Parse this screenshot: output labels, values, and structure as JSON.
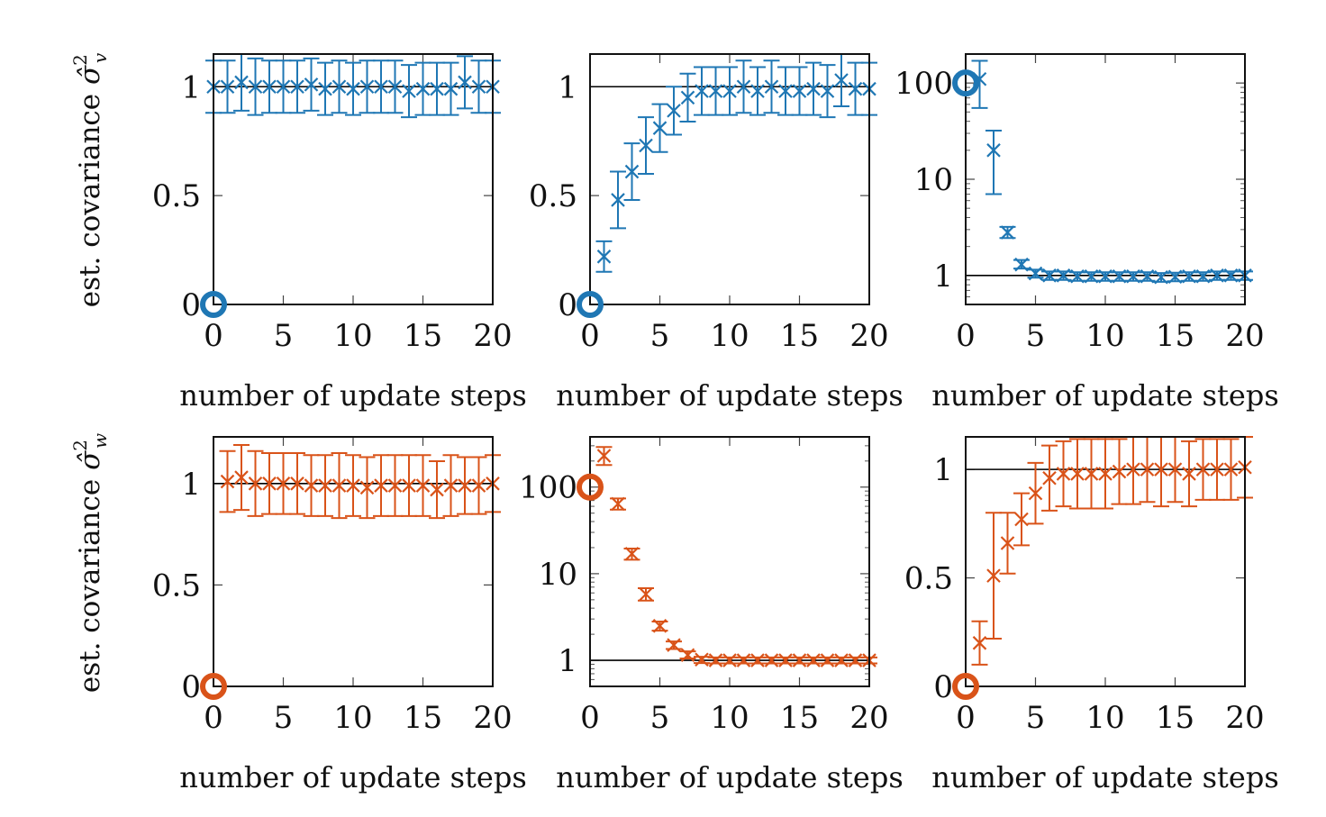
{
  "colors": {
    "blue": "#1f77b4",
    "orange": "#d95319",
    "reference_line": "#000000"
  },
  "row_labels": {
    "top": "est. covariance σ̂²_v",
    "bottom": "est. covariance σ̂²_w"
  },
  "chart_data": [
    {
      "type": "scatter",
      "row": 0,
      "col": 0,
      "color": "blue",
      "xlabel": "number of update steps",
      "ylabel": "est. covariance σ̂²_v",
      "xlim": [
        0,
        20
      ],
      "ylim": [
        0,
        1.15
      ],
      "yscale": "linear",
      "xticks": [
        0,
        5,
        10,
        15,
        20
      ],
      "xtick_labels": [
        "0",
        "5",
        "10",
        "15",
        "20"
      ],
      "yticks": [
        0,
        0.5,
        1
      ],
      "ytick_labels": [
        "0",
        "0.5",
        "1"
      ],
      "reference_line": 1,
      "initial_point": {
        "x": 0,
        "y": 0
      },
      "x": [
        0,
        1,
        2,
        3,
        4,
        5,
        6,
        7,
        8,
        9,
        10,
        11,
        12,
        13,
        14,
        15,
        16,
        17,
        18,
        19,
        20
      ],
      "y": [
        1.0,
        1.0,
        1.02,
        1.0,
        1.0,
        1.0,
        1.0,
        1.01,
        0.99,
        1.0,
        0.99,
        1.0,
        1.0,
        1.0,
        0.98,
        0.99,
        0.99,
        0.99,
        1.02,
        1.0,
        1.0
      ],
      "err": [
        0.12,
        0.12,
        0.13,
        0.13,
        0.12,
        0.12,
        0.12,
        0.12,
        0.12,
        0.12,
        0.12,
        0.12,
        0.12,
        0.12,
        0.12,
        0.12,
        0.12,
        0.12,
        0.12,
        0.12,
        0.12
      ]
    },
    {
      "type": "scatter",
      "row": 0,
      "col": 1,
      "color": "blue",
      "xlabel": "number of update steps",
      "ylabel": "",
      "xlim": [
        0,
        20
      ],
      "ylim": [
        0,
        1.15
      ],
      "yscale": "linear",
      "xticks": [
        0,
        5,
        10,
        15,
        20
      ],
      "xtick_labels": [
        "0",
        "5",
        "10",
        "15",
        "20"
      ],
      "yticks": [
        0,
        0.5,
        1
      ],
      "ytick_labels": [
        "0",
        "0.5",
        "1"
      ],
      "reference_line": 1,
      "initial_point": {
        "x": 0,
        "y": 0
      },
      "x": [
        1,
        2,
        3,
        4,
        5,
        6,
        7,
        8,
        9,
        10,
        11,
        12,
        13,
        14,
        15,
        16,
        17,
        18,
        19,
        20
      ],
      "y": [
        0.22,
        0.48,
        0.61,
        0.73,
        0.81,
        0.89,
        0.95,
        0.98,
        0.98,
        0.98,
        1.0,
        0.98,
        1.0,
        0.98,
        0.98,
        0.99,
        0.98,
        1.03,
        0.99,
        0.99
      ],
      "err": [
        0.07,
        0.13,
        0.13,
        0.13,
        0.11,
        0.11,
        0.11,
        0.11,
        0.11,
        0.11,
        0.12,
        0.11,
        0.12,
        0.11,
        0.11,
        0.12,
        0.12,
        0.12,
        0.12,
        0.12
      ]
    },
    {
      "type": "scatter",
      "row": 0,
      "col": 2,
      "color": "blue",
      "xlabel": "number of update steps",
      "ylabel": "",
      "xlim": [
        0,
        20
      ],
      "ylim": [
        0.5,
        200
      ],
      "yscale": "log",
      "xticks": [
        0,
        5,
        10,
        15,
        20
      ],
      "xtick_labels": [
        "0",
        "5",
        "10",
        "15",
        "20"
      ],
      "yticks": [
        1,
        10,
        100
      ],
      "ytick_labels": [
        "1",
        "10",
        "100"
      ],
      "reference_line": 1,
      "initial_point": {
        "x": 0,
        "y": 100
      },
      "x": [
        1,
        2,
        3,
        4,
        5,
        6,
        7,
        8,
        9,
        10,
        11,
        12,
        13,
        14,
        15,
        16,
        17,
        18,
        19,
        20
      ],
      "y": [
        110,
        20,
        2.8,
        1.3,
        1.05,
        1.0,
        1.0,
        0.98,
        0.98,
        0.98,
        0.98,
        0.98,
        0.98,
        0.96,
        0.97,
        0.98,
        0.98,
        1.0,
        1.0,
        1.0
      ],
      "err_low": [
        55,
        7,
        2.45,
        1.18,
        0.95,
        0.9,
        0.9,
        0.88,
        0.88,
        0.88,
        0.88,
        0.88,
        0.88,
        0.86,
        0.87,
        0.88,
        0.88,
        0.9,
        0.9,
        0.9
      ],
      "err_high": [
        170,
        32,
        3.2,
        1.45,
        1.15,
        1.1,
        1.1,
        1.08,
        1.08,
        1.08,
        1.08,
        1.08,
        1.08,
        1.06,
        1.07,
        1.08,
        1.08,
        1.1,
        1.1,
        1.1
      ]
    },
    {
      "type": "scatter",
      "row": 1,
      "col": 0,
      "color": "orange",
      "xlabel": "number of update steps",
      "ylabel": "est. covariance σ̂²_w",
      "xlim": [
        0,
        20
      ],
      "ylim": [
        0,
        1.23
      ],
      "yscale": "linear",
      "xticks": [
        0,
        5,
        10,
        15,
        20
      ],
      "xtick_labels": [
        "0",
        "5",
        "10",
        "15",
        "20"
      ],
      "yticks": [
        0,
        0.5,
        1
      ],
      "ytick_labels": [
        "0",
        "0.5",
        "1"
      ],
      "reference_line": 1,
      "initial_point": {
        "x": 0,
        "y": 0
      },
      "x": [
        1,
        2,
        3,
        4,
        5,
        6,
        7,
        8,
        9,
        10,
        11,
        12,
        13,
        14,
        15,
        16,
        17,
        18,
        19,
        20
      ],
      "y": [
        1.01,
        1.03,
        1.0,
        1.0,
        1.0,
        1.0,
        0.99,
        0.99,
        0.99,
        0.99,
        0.98,
        0.99,
        0.99,
        0.99,
        0.99,
        0.97,
        0.99,
        0.99,
        0.99,
        1.0
      ],
      "err": [
        0.15,
        0.16,
        0.16,
        0.15,
        0.15,
        0.15,
        0.15,
        0.15,
        0.16,
        0.15,
        0.15,
        0.15,
        0.15,
        0.15,
        0.15,
        0.14,
        0.15,
        0.14,
        0.14,
        0.14
      ]
    },
    {
      "type": "scatter",
      "row": 1,
      "col": 1,
      "color": "orange",
      "xlabel": "number of update steps",
      "ylabel": "",
      "xlim": [
        0,
        20
      ],
      "ylim": [
        0.5,
        380
      ],
      "yscale": "log",
      "xticks": [
        0,
        5,
        10,
        15,
        20
      ],
      "xtick_labels": [
        "0",
        "5",
        "10",
        "15",
        "20"
      ],
      "yticks": [
        1,
        10,
        100
      ],
      "ytick_labels": [
        "1",
        "10",
        "100"
      ],
      "reference_line": 1,
      "initial_point": {
        "x": 0,
        "y": 100
      },
      "x": [
        1,
        2,
        3,
        4,
        5,
        6,
        7,
        8,
        9,
        10,
        11,
        12,
        13,
        14,
        15,
        16,
        17,
        18,
        19,
        20
      ],
      "y": [
        230,
        64,
        17,
        5.8,
        2.5,
        1.5,
        1.15,
        1.02,
        1.0,
        1.0,
        1.0,
        1.0,
        1.0,
        1.0,
        1.0,
        1.0,
        1.0,
        1.0,
        1.0,
        1.0
      ],
      "err_low": [
        180,
        55,
        14.5,
        4.9,
        2.2,
        1.35,
        1.05,
        0.93,
        0.92,
        0.92,
        0.92,
        0.92,
        0.92,
        0.92,
        0.92,
        0.92,
        0.92,
        0.92,
        0.92,
        0.92
      ],
      "err_high": [
        290,
        74,
        19.5,
        6.8,
        2.8,
        1.65,
        1.27,
        1.1,
        1.08,
        1.08,
        1.08,
        1.08,
        1.08,
        1.08,
        1.08,
        1.08,
        1.08,
        1.08,
        1.08,
        1.08
      ]
    },
    {
      "type": "scatter",
      "row": 1,
      "col": 2,
      "color": "orange",
      "xlabel": "number of update steps",
      "ylabel": "",
      "xlim": [
        0,
        20
      ],
      "ylim": [
        0,
        1.15
      ],
      "yscale": "linear",
      "xticks": [
        0,
        5,
        10,
        15,
        20
      ],
      "xtick_labels": [
        "0",
        "5",
        "10",
        "15",
        "20"
      ],
      "yticks": [
        0,
        0.5,
        1
      ],
      "ytick_labels": [
        "0",
        "0.5",
        "1"
      ],
      "reference_line": 1,
      "initial_point": {
        "x": 0,
        "y": 0
      },
      "x": [
        1,
        2,
        3,
        4,
        5,
        6,
        7,
        8,
        9,
        10,
        11,
        12,
        13,
        14,
        15,
        16,
        17,
        18,
        19,
        20
      ],
      "y": [
        0.2,
        0.51,
        0.66,
        0.77,
        0.89,
        0.96,
        0.98,
        0.98,
        0.98,
        0.98,
        0.99,
        1.0,
        1.0,
        1.0,
        1.0,
        0.98,
        1.0,
        1.0,
        1.0,
        1.01
      ],
      "err": [
        0.1,
        0.29,
        0.14,
        0.12,
        0.14,
        0.15,
        0.15,
        0.16,
        0.16,
        0.16,
        0.15,
        0.16,
        0.15,
        0.17,
        0.15,
        0.15,
        0.14,
        0.14,
        0.14,
        0.14
      ]
    }
  ]
}
